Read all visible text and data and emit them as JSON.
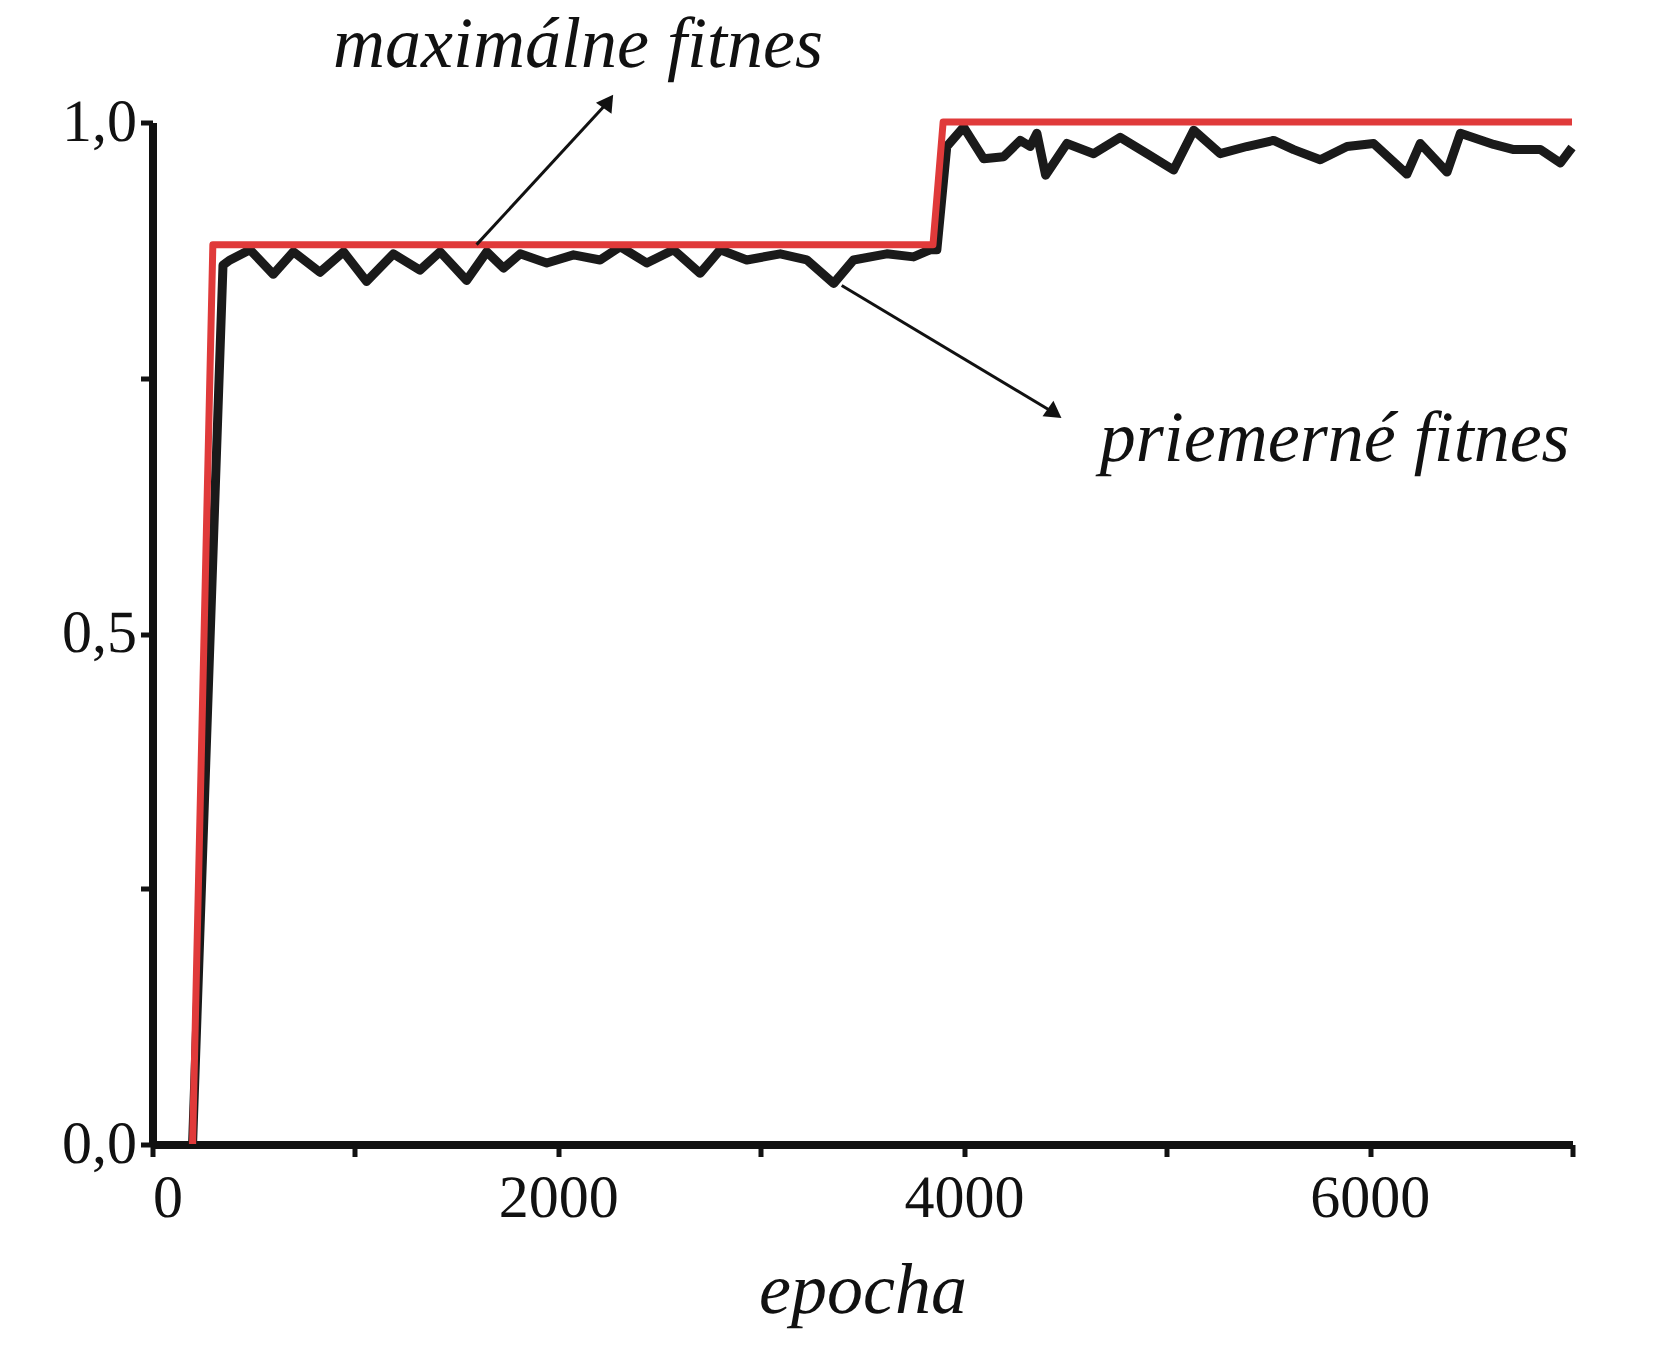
{
  "chart_data": {
    "type": "line",
    "xlabel": "epocha",
    "xlim": [
      0,
      7000
    ],
    "xticks": [
      0,
      {
        "value": 1000,
        "label": null
      },
      2000,
      {
        "value": 3000,
        "label": null
      },
      4000,
      {
        "value": 5000,
        "label": null
      },
      6000,
      {
        "value": 7000,
        "label": null
      }
    ],
    "ylim": [
      0,
      1.0
    ],
    "yticks": [
      {
        "value": 0,
        "label": "0,0"
      },
      {
        "value": 0.25,
        "label": null
      },
      {
        "value": 0.5,
        "label": "0,5"
      },
      {
        "value": 0.75,
        "label": null
      },
      {
        "value": 1.0,
        "label": "1,0"
      }
    ],
    "grid": false,
    "marker": "none",
    "line_style": "solid",
    "series": [
      {
        "color": "#1a1a1a",
        "x": [
          200,
          350,
          385,
          483,
          598,
          697,
          828,
          944,
          1058,
          1190,
          1321,
          1420,
          1551,
          1650,
          1733,
          1815,
          1946,
          2078,
          2209,
          2308,
          2439,
          2571,
          2702,
          2801,
          2932,
          3097,
          3228,
          3360,
          3458,
          3622,
          3754,
          3836,
          3869,
          3918,
          4001,
          4100,
          4198,
          4280,
          4329,
          4362,
          4405,
          4510,
          4642,
          4773,
          4905,
          5036,
          5135,
          5266,
          5397,
          5529,
          5628,
          5759,
          5891,
          6022,
          6186,
          6252,
          6384,
          6450,
          6614,
          6713,
          6844,
          6943,
          7000
        ],
        "values": [
          0,
          0.86,
          0.865,
          0.875,
          0.851,
          0.873,
          0.853,
          0.873,
          0.844,
          0.871,
          0.855,
          0.873,
          0.845,
          0.873,
          0.857,
          0.871,
          0.862,
          0.87,
          0.865,
          0.878,
          0.862,
          0.875,
          0.852,
          0.875,
          0.865,
          0.871,
          0.865,
          0.842,
          0.865,
          0.871,
          0.868,
          0.875,
          0.875,
          0.976,
          0.995,
          0.964,
          0.966,
          0.982,
          0.976,
          0.989,
          0.948,
          0.979,
          0.969,
          0.985,
          0.969,
          0.953,
          0.992,
          0.969,
          0.976,
          0.982,
          0.973,
          0.963,
          0.976,
          0.979,
          0.949,
          0.979,
          0.951,
          0.989,
          0.978,
          0.973,
          0.973,
          0.96,
          0.975
        ]
      },
      {
        "color": "#e03a3a",
        "x": [
          200,
          300,
          3850,
          3900,
          7000
        ],
        "values": [
          0,
          0.88,
          0.88,
          1.0,
          1.0
        ]
      }
    ],
    "annotations": [
      {
        "text": "maximálne fitnes",
        "x": 1600,
        "y": 0.88
      },
      {
        "text": "priemerné fitnes",
        "x": 3400,
        "y": 0.84
      }
    ]
  }
}
